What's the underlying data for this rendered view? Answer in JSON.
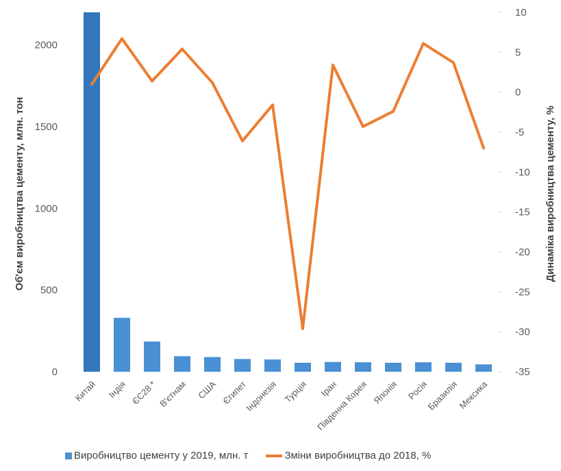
{
  "colors": {
    "bar": "#4a90d4",
    "bar_dark": "#3277bc",
    "line": "#ed7d31",
    "axis_text": "#595959"
  },
  "chart_data": {
    "type": "bar",
    "title": "",
    "categories": [
      "Китай",
      "Індія",
      "ЄС28 *",
      "В'єтнам",
      "США",
      "Єгипет",
      "Індонезія",
      "Турція",
      "Іран",
      "Південна Корея",
      "Японія",
      "Росія",
      "Бразилія",
      "Мексика"
    ],
    "series": [
      {
        "name": "Виробництво цементу у 2019, млн. т",
        "type": "bar",
        "axis": "left",
        "values": [
          2200,
          330,
          185,
          95,
          90,
          78,
          75,
          55,
          60,
          58,
          55,
          58,
          55,
          45
        ]
      },
      {
        "name": "Зміни виробництва до 2018, %",
        "type": "line",
        "axis": "right",
        "values": [
          1.0,
          6.7,
          1.4,
          5.4,
          1.2,
          -6.1,
          -1.6,
          -29.6,
          3.4,
          -4.3,
          -2.4,
          6.1,
          3.7,
          -7.0
        ]
      }
    ],
    "ylabel": "Об'єм виробництва цементу, млн. тон",
    "ylim": [
      0,
      2200
    ],
    "yticks": [
      0,
      500,
      1000,
      1500,
      2000
    ],
    "y2label": "Динаміка виробництва цементу, %",
    "y2lim": [
      -35,
      10
    ],
    "y2ticks": [
      10,
      5,
      0,
      -5,
      -10,
      -15,
      -20,
      -25,
      -30,
      -35
    ],
    "grid": false,
    "legend_position": "bottom"
  }
}
